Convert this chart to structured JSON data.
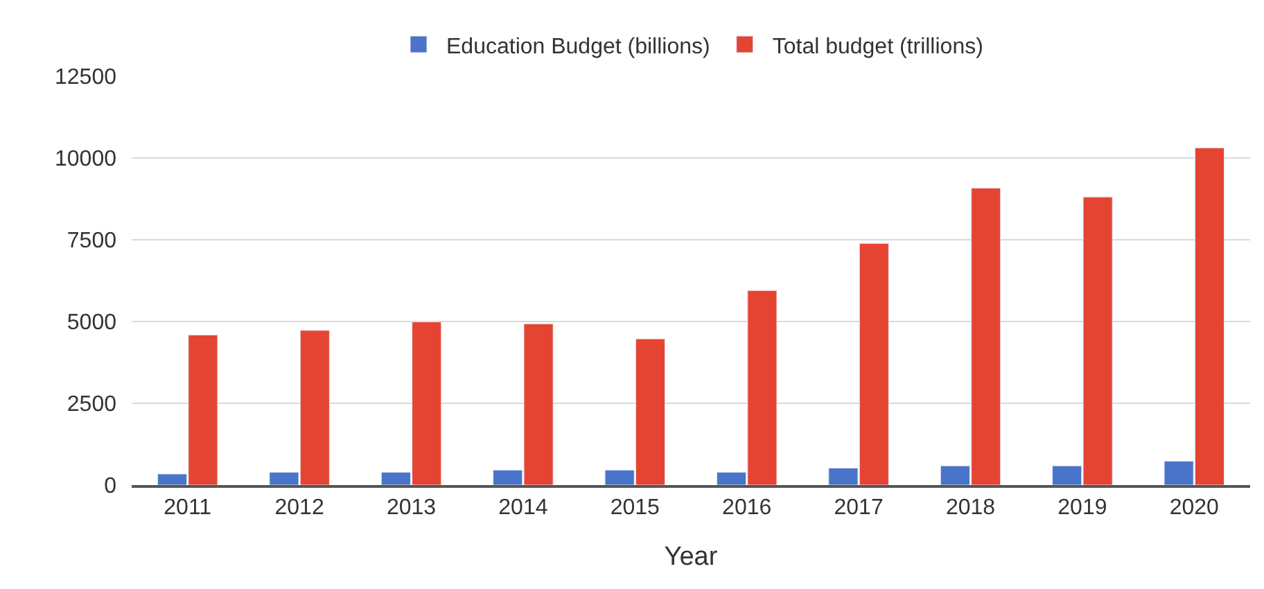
{
  "chart_data": {
    "type": "bar",
    "xlabel": "Year",
    "categories": [
      "2011",
      "2012",
      "2013",
      "2014",
      "2015",
      "2016",
      "2017",
      "2018",
      "2019",
      "2020"
    ],
    "series": [
      {
        "name": "Education Budget (billions)",
        "color": "#4a74c9",
        "values": [
          340,
          390,
          390,
          460,
          460,
          390,
          520,
          590,
          590,
          730
        ]
      },
      {
        "name": "Total budget (trillions)",
        "color": "#e64433",
        "values": [
          4590,
          4730,
          4990,
          4930,
          4470,
          5950,
          7390,
          9080,
          8810,
          10310
        ]
      }
    ],
    "ylim": [
      0,
      12500
    ],
    "yticks": [
      0,
      2500,
      5000,
      7500,
      10000,
      12500
    ],
    "grid": "y",
    "legend": "top"
  }
}
